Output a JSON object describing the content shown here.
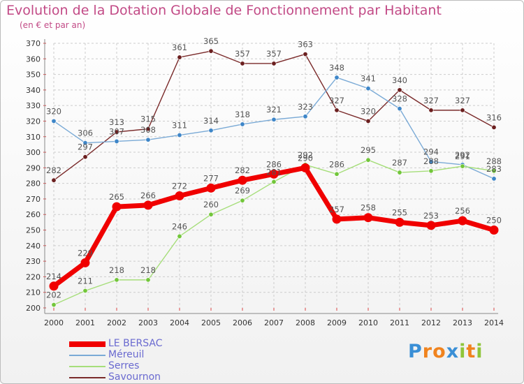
{
  "title": "Evolution de la Dotation Globale de Fonctionnement par Habitant",
  "subtitle": "(en € et par an)",
  "logo": {
    "letters": [
      "P",
      "r",
      "o",
      "x",
      "i",
      "t",
      "i"
    ],
    "colors": [
      "#3a8fd6",
      "#f0831e",
      "#f0831e",
      "#3a8fd6",
      "#8fc53a",
      "#f0831e",
      "#8fc53a"
    ]
  },
  "colors": {
    "title": "#c24a86",
    "grid": "#cccccc",
    "axis": "#888888",
    "tick_text": "#333333",
    "label_text": "#555555",
    "legend_text": "#6a6ad0"
  },
  "chart_data": {
    "type": "line",
    "x": [
      "2000",
      "2001",
      "2002",
      "2003",
      "2004",
      "2005",
      "2006",
      "2007",
      "2008",
      "2009",
      "2010",
      "2011",
      "2012",
      "2013",
      "2014"
    ],
    "ylim": [
      200,
      370
    ],
    "yticks": [
      200,
      210,
      220,
      230,
      240,
      250,
      260,
      270,
      280,
      290,
      300,
      310,
      320,
      330,
      340,
      350,
      360,
      370
    ],
    "grid": true,
    "legend_position": "bottom-left",
    "series": [
      {
        "name": "Savournon",
        "color": "#7a2a2a",
        "marker_color": "#6b1f1f",
        "line_width": 1.4,
        "marker_radius": 3.2,
        "values": [
          282,
          297,
          313,
          315,
          361,
          365,
          357,
          357,
          363,
          327,
          320,
          340,
          327,
          327,
          316
        ]
      },
      {
        "name": "Méreuil",
        "color": "#7aaad6",
        "marker_color": "#3e86c8",
        "line_width": 1.4,
        "marker_radius": 3.2,
        "values": [
          320,
          306,
          307,
          308,
          311,
          314,
          318,
          321,
          323,
          348,
          341,
          328,
          294,
          292,
          283
        ]
      },
      {
        "name": "Serres",
        "color": "#a6de7a",
        "marker_color": "#72c63a",
        "line_width": 1.4,
        "marker_radius": 3.2,
        "values": [
          202,
          211,
          218,
          218,
          246,
          260,
          269,
          281,
          292,
          286,
          295,
          287,
          288,
          291,
          288
        ]
      },
      {
        "name": "LE BERSAC",
        "color": "#f00000",
        "marker_color": "#f00000",
        "line_width": 7,
        "marker_radius": 6.5,
        "values": [
          214,
          229,
          265,
          266,
          272,
          277,
          282,
          286,
          290,
          257,
          258,
          255,
          253,
          256,
          250
        ]
      }
    ]
  },
  "legend": [
    {
      "label": "LE BERSAC",
      "color": "#f00000",
      "thickness": 8
    },
    {
      "label": "Méreuil",
      "color": "#7aaad6",
      "thickness": 2
    },
    {
      "label": "Serres",
      "color": "#a6de7a",
      "thickness": 2
    },
    {
      "label": "Savournon",
      "color": "#7a2a2a",
      "thickness": 2
    }
  ]
}
